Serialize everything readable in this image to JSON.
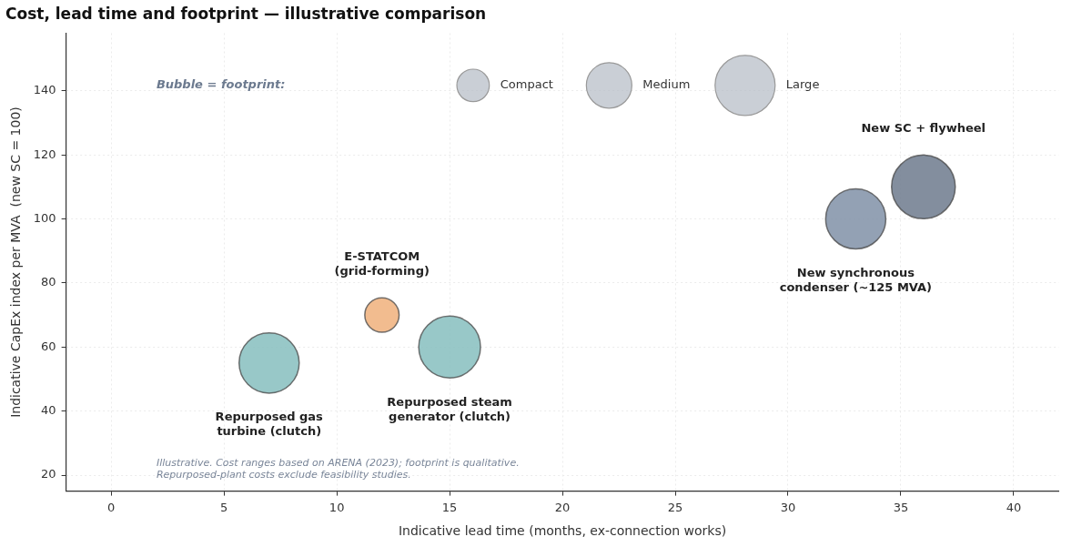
{
  "chart_data": {
    "type": "bubble",
    "title": "Cost, lead time and footprint — illustrative comparison",
    "xlabel": "Indicative lead time (months, ex-connection works)",
    "ylabel": "Indicative CapEx index per MVA  (new SC = 100)",
    "legend_title": "Bubble = footprint:",
    "series": [
      {
        "name": "Repurposed gas\nturbine (clutch)",
        "color": "#88bfbf",
        "x": [
          7
        ],
        "values": [
          55
        ],
        "sizes": [
          0.89
        ]
      },
      {
        "name": "E-STATCOM\n(grid-forming)",
        "color": "#f0b27e",
        "x": [
          12
        ],
        "values": [
          70
        ],
        "sizes": [
          0.29
        ]
      },
      {
        "name": "Repurposed steam\ngenerator (clutch)",
        "color": "#88bfbf",
        "x": [
          15
        ],
        "values": [
          60
        ],
        "sizes": [
          0.94
        ]
      },
      {
        "name": "New synchronous\ncondenser (~125 MVA)",
        "color": "#8292a9",
        "x": [
          33
        ],
        "values": [
          100
        ],
        "sizes": [
          0.89
        ]
      },
      {
        "name": "New SC + flywheel",
        "color": "#707d8f",
        "x": [
          36
        ],
        "values": [
          110
        ],
        "sizes": [
          1
        ]
      }
    ],
    "size_legend": [
      {
        "value": 0.26,
        "label": "Compact"
      },
      {
        "value": 0.51,
        "label": "Medium"
      },
      {
        "value": 0.89,
        "label": "Large"
      }
    ],
    "xlim": [
      -2,
      42
    ],
    "ylim": [
      15,
      158
    ],
    "xticks": [
      0,
      5,
      10,
      15,
      20,
      25,
      30,
      35,
      40
    ],
    "yticks": [
      20,
      40,
      60,
      80,
      100,
      120,
      140
    ],
    "grid": true,
    "annotations": [
      "Illustrative. Cost ranges based on ARENA (2023); footprint is qualitative.",
      "Repurposed-plant costs exclude feasibility studies."
    ]
  }
}
